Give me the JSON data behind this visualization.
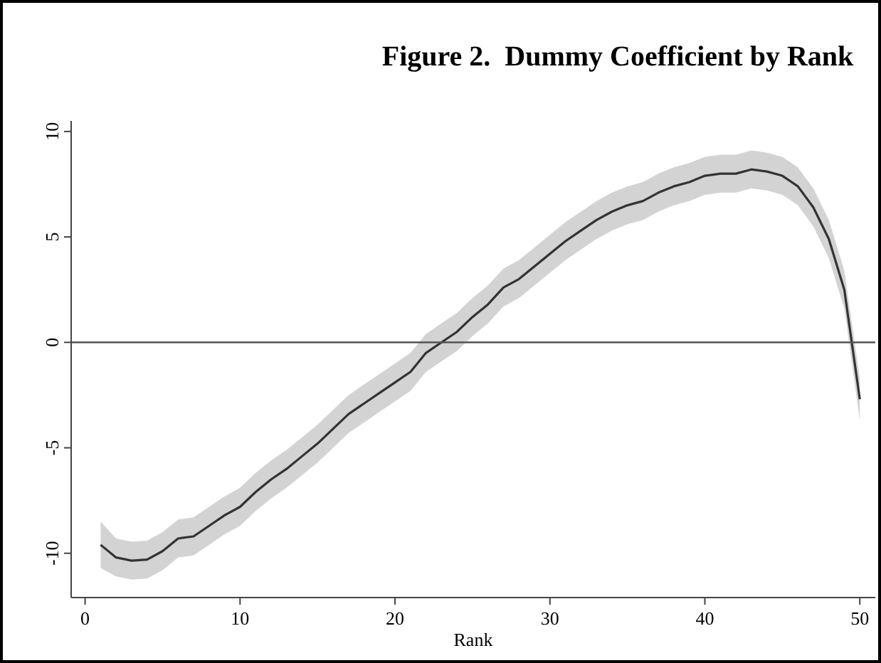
{
  "chart_data": {
    "type": "line",
    "title": "Figure 2.  Dummy Coefficient by Rank",
    "xlabel": "Rank",
    "x": [
      1,
      2,
      3,
      4,
      5,
      6,
      7,
      8,
      9,
      10,
      11,
      12,
      13,
      14,
      15,
      16,
      17,
      18,
      19,
      20,
      21,
      22,
      23,
      24,
      25,
      26,
      27,
      28,
      29,
      30,
      31,
      32,
      33,
      34,
      35,
      36,
      37,
      38,
      39,
      40,
      41,
      42,
      43,
      44,
      45,
      46,
      47,
      48,
      49,
      50
    ],
    "series": [
      {
        "color": "#333333",
        "values": [
          -9.6,
          -10.2,
          -10.35,
          -10.3,
          -9.9,
          -9.3,
          -9.2,
          -8.7,
          -8.2,
          -7.8,
          -7.1,
          -6.5,
          -6.0,
          -5.4,
          -4.8,
          -4.1,
          -3.4,
          -2.9,
          -2.4,
          -1.9,
          -1.4,
          -0.5,
          0.0,
          0.5,
          1.2,
          1.8,
          2.6,
          3.0,
          3.6,
          4.2,
          4.8,
          5.3,
          5.8,
          6.2,
          6.5,
          6.7,
          7.1,
          7.4,
          7.6,
          7.9,
          8.0,
          8.0,
          8.2,
          8.1,
          7.9,
          7.4,
          6.4,
          4.9,
          2.5,
          -2.7
        ],
        "lower": [
          -10.7,
          -11.1,
          -11.25,
          -11.2,
          -10.8,
          -10.2,
          -10.1,
          -9.6,
          -9.1,
          -8.7,
          -8.0,
          -7.4,
          -6.9,
          -6.3,
          -5.7,
          -5.0,
          -4.3,
          -3.8,
          -3.3,
          -2.8,
          -2.3,
          -1.4,
          -0.9,
          -0.4,
          0.3,
          0.9,
          1.7,
          2.1,
          2.7,
          3.3,
          3.9,
          4.4,
          4.9,
          5.3,
          5.6,
          5.8,
          6.2,
          6.5,
          6.7,
          7.0,
          7.1,
          7.1,
          7.3,
          7.2,
          7.0,
          6.5,
          5.5,
          4.0,
          1.6,
          -3.7
        ],
        "upper": [
          -8.5,
          -9.3,
          -9.45,
          -9.4,
          -9.0,
          -8.4,
          -8.3,
          -7.8,
          -7.3,
          -6.9,
          -6.2,
          -5.6,
          -5.1,
          -4.5,
          -3.9,
          -3.2,
          -2.5,
          -2.0,
          -1.5,
          -1.0,
          -0.5,
          0.4,
          0.9,
          1.4,
          2.1,
          2.7,
          3.5,
          3.9,
          4.5,
          5.1,
          5.7,
          6.2,
          6.7,
          7.1,
          7.4,
          7.6,
          8.0,
          8.3,
          8.5,
          8.8,
          8.9,
          8.9,
          9.1,
          9.0,
          8.8,
          8.3,
          7.3,
          5.8,
          3.4,
          -1.7
        ]
      }
    ],
    "xlim": [
      -0.9,
      51
    ],
    "xticks": [
      0,
      10,
      20,
      30,
      40,
      50
    ],
    "ylim": [
      -12.1,
      10.5
    ],
    "yticks": [
      -10,
      -5,
      0,
      5,
      10
    ],
    "ref_lines": [
      {
        "axis": "y",
        "value": 0,
        "color": "#555555"
      }
    ],
    "grid": false,
    "marker": "none",
    "line_style": "solid"
  }
}
